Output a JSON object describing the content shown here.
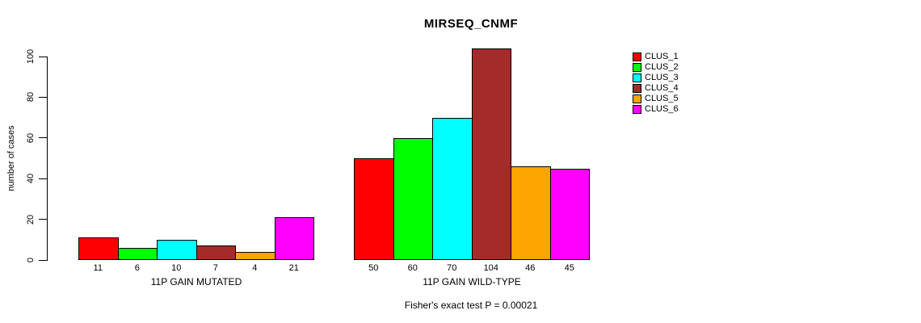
{
  "chart_data": {
    "type": "bar",
    "title": "MIRSEQ_CNMF",
    "ylabel": "number of cases",
    "ylim": [
      0,
      100
    ],
    "yticks": [
      0,
      20,
      40,
      60,
      80,
      100
    ],
    "grid": false,
    "legend_position": "right",
    "series": [
      {
        "name": "CLUS_1",
        "color": "#FF0000"
      },
      {
        "name": "CLUS_2",
        "color": "#00FF00"
      },
      {
        "name": "CLUS_3",
        "color": "#00FFFF"
      },
      {
        "name": "CLUS_4",
        "color": "#A52A2A"
      },
      {
        "name": "CLUS_5",
        "color": "#FFA500"
      },
      {
        "name": "CLUS_6",
        "color": "#FF00FF"
      }
    ],
    "groups": [
      {
        "label": "11P GAIN MUTATED",
        "values": [
          11,
          6,
          10,
          7,
          4,
          21
        ]
      },
      {
        "label": "11P GAIN WILD-TYPE",
        "values": [
          50,
          60,
          70,
          104,
          46,
          45
        ]
      }
    ],
    "annotation": "Fisher's exact test P = 0.00021"
  }
}
